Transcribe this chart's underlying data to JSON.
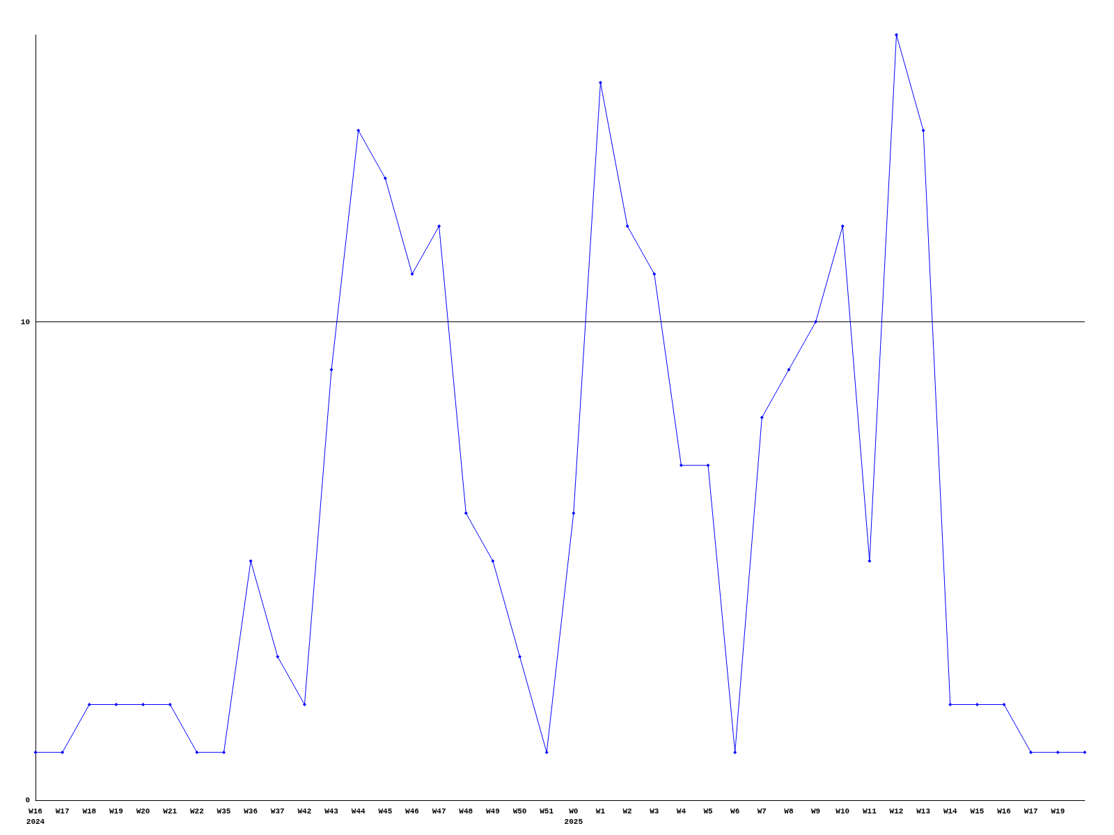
{
  "chart_data": {
    "type": "line",
    "categories": [
      "W16\n2024",
      "W17",
      "W18",
      "W19",
      "W20",
      "W21",
      "W22",
      "W35",
      "W36",
      "W37",
      "W42",
      "W43",
      "W44",
      "W45",
      "W46",
      "W47",
      "W48",
      "W49",
      "W50",
      "W51",
      "W0\n2025",
      "W1",
      "W2",
      "W3",
      "W4",
      "W5",
      "W6",
      "W7",
      "W8",
      "W9",
      "W10",
      "W11",
      "W12",
      "W13",
      "W14",
      "W15",
      "W16",
      "W17",
      "W19",
      null
    ],
    "series": [
      {
        "color": "#0000ff",
        "values": [
          1,
          1,
          2,
          2,
          2,
          2,
          1,
          1,
          5,
          3,
          2,
          9,
          14,
          13,
          11,
          12,
          6,
          5,
          3,
          1,
          6,
          15,
          12,
          11,
          7,
          7,
          1,
          8,
          9,
          10,
          12,
          5,
          16,
          14,
          2,
          2,
          2,
          1,
          1,
          1
        ]
      }
    ],
    "ylim": [
      0,
      16
    ],
    "yticks": [
      0,
      10
    ],
    "grid": "y",
    "marker": "diamond",
    "line_style": "solid"
  }
}
